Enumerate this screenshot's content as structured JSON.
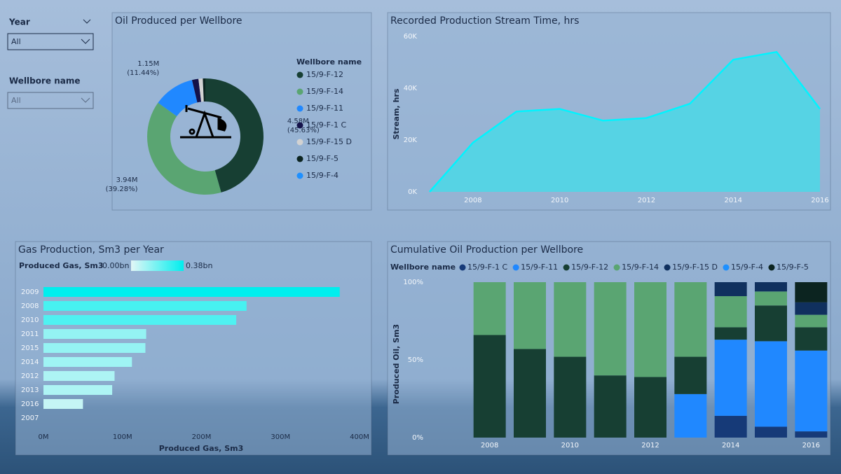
{
  "filters": [
    {
      "label": "Year",
      "value": "All"
    },
    {
      "label": "Wellbore name",
      "value": "All"
    }
  ],
  "chart_data": [
    {
      "type": "donut",
      "title": "Oil Produced per Wellbore",
      "legend_title": "Wellbore name",
      "categories": [
        "15/9-F-12",
        "15/9-F-14",
        "15/9-F-11",
        "15/9-F-1 C",
        "15/9-F-15 D",
        "15/9-F-5",
        "15/9-F-4"
      ],
      "values": [
        4580000,
        3940000,
        1150000,
        180000,
        120000,
        70000,
        0
      ],
      "value_labels": [
        "4.58M",
        "3.94M",
        "1.15M",
        null,
        null,
        null,
        null
      ],
      "percent_labels": [
        "(45.63%)",
        "(39.28%)",
        "(11.44%)",
        null,
        null,
        null,
        null
      ],
      "colors": [
        "#173f33",
        "#5aa572",
        "#2088ff",
        "#14124a",
        "#d2d2d2",
        "#0c2420",
        "#1e90ff"
      ]
    },
    {
      "type": "area",
      "title": "Recorded Production Stream Time, hrs",
      "ylabel": "Stream, hrs",
      "x": [
        2007,
        2008,
        2009,
        2010,
        2011,
        2012,
        2013,
        2014,
        2015,
        2016
      ],
      "values": [
        0,
        19000,
        31000,
        32000,
        27500,
        28500,
        34000,
        51000,
        54000,
        32000
      ],
      "color": "#4fd6e6",
      "line_color": "#00f4ff",
      "xlim": [
        2007,
        2016
      ],
      "xticks": [
        2008,
        2010,
        2012,
        2014,
        2016
      ],
      "ylim": [
        0,
        60000
      ],
      "yticks": [
        {
          "value": 0,
          "label": "0K"
        },
        {
          "value": 20000,
          "label": "20K"
        },
        {
          "value": 40000,
          "label": "40K"
        },
        {
          "value": 60000,
          "label": "60K"
        }
      ]
    },
    {
      "type": "hbar",
      "title": "Gas Production, Sm3 per Year",
      "xlabel": "Produced Gas, Sm3",
      "categories": [
        "2009",
        "2008",
        "2010",
        "2011",
        "2015",
        "2014",
        "2012",
        "2013",
        "2016",
        "2007"
      ],
      "values": [
        375000000,
        257000000,
        244000000,
        130000000,
        129000000,
        112000000,
        90000000,
        87000000,
        50000000,
        0
      ],
      "xlim": [
        0,
        400000000
      ],
      "xticks": [
        {
          "value": 0,
          "label": "0M"
        },
        {
          "value": 100000000,
          "label": "100M"
        },
        {
          "value": 200000000,
          "label": "200M"
        },
        {
          "value": 300000000,
          "label": "300M"
        },
        {
          "value": 400000000,
          "label": "400M"
        }
      ],
      "color_scale": {
        "title": "Produced Gas, Sm3",
        "min": {
          "value": 0,
          "label": "0.00bn"
        },
        "max": {
          "value": 375000000,
          "label": "0.38bn"
        },
        "colors": [
          "#e3f6f6",
          "#00eeee"
        ]
      }
    },
    {
      "type": "stacked_bar",
      "title": "Cumulative Oil Production per Wellbore",
      "ylabel": "Produced Oil, Sm3",
      "legend_title": "Wellbore name",
      "categories": [
        "2008",
        null,
        "2010",
        null,
        "2012",
        null,
        "2014",
        null,
        "2016"
      ],
      "series": [
        {
          "name": "15/9-F-1 C",
          "color": "#163a78",
          "values": [
            0,
            0,
            0,
            0,
            0,
            0,
            14,
            7,
            4
          ]
        },
        {
          "name": "15/9-F-11",
          "color": "#2088ff",
          "values": [
            0,
            0,
            0,
            0,
            0,
            28,
            49,
            55,
            52
          ]
        },
        {
          "name": "15/9-F-12",
          "color": "#173f33",
          "values": [
            66,
            57,
            52,
            40,
            39,
            24,
            8,
            23,
            15
          ]
        },
        {
          "name": "15/9-F-14",
          "color": "#5aa572",
          "values": [
            34,
            43,
            48,
            60,
            61,
            48,
            20,
            9,
            8
          ]
        },
        {
          "name": "15/9-F-15 D",
          "color": "#10305e",
          "values": [
            0,
            0,
            0,
            0,
            0,
            0,
            9,
            6,
            8
          ]
        },
        {
          "name": "15/9-F-4",
          "color": "#1e90ff",
          "values": [
            0,
            0,
            0,
            0,
            0,
            0,
            0,
            0,
            0
          ]
        },
        {
          "name": "15/9-F-5",
          "color": "#0c2420",
          "values": [
            0,
            0,
            0,
            0,
            0,
            0,
            0,
            0,
            13
          ]
        }
      ],
      "ylim": [
        0,
        100
      ],
      "yticks": [
        {
          "value": 0,
          "label": "0%"
        },
        {
          "value": 50,
          "label": "50%"
        },
        {
          "value": 100,
          "label": "100%"
        }
      ]
    }
  ]
}
